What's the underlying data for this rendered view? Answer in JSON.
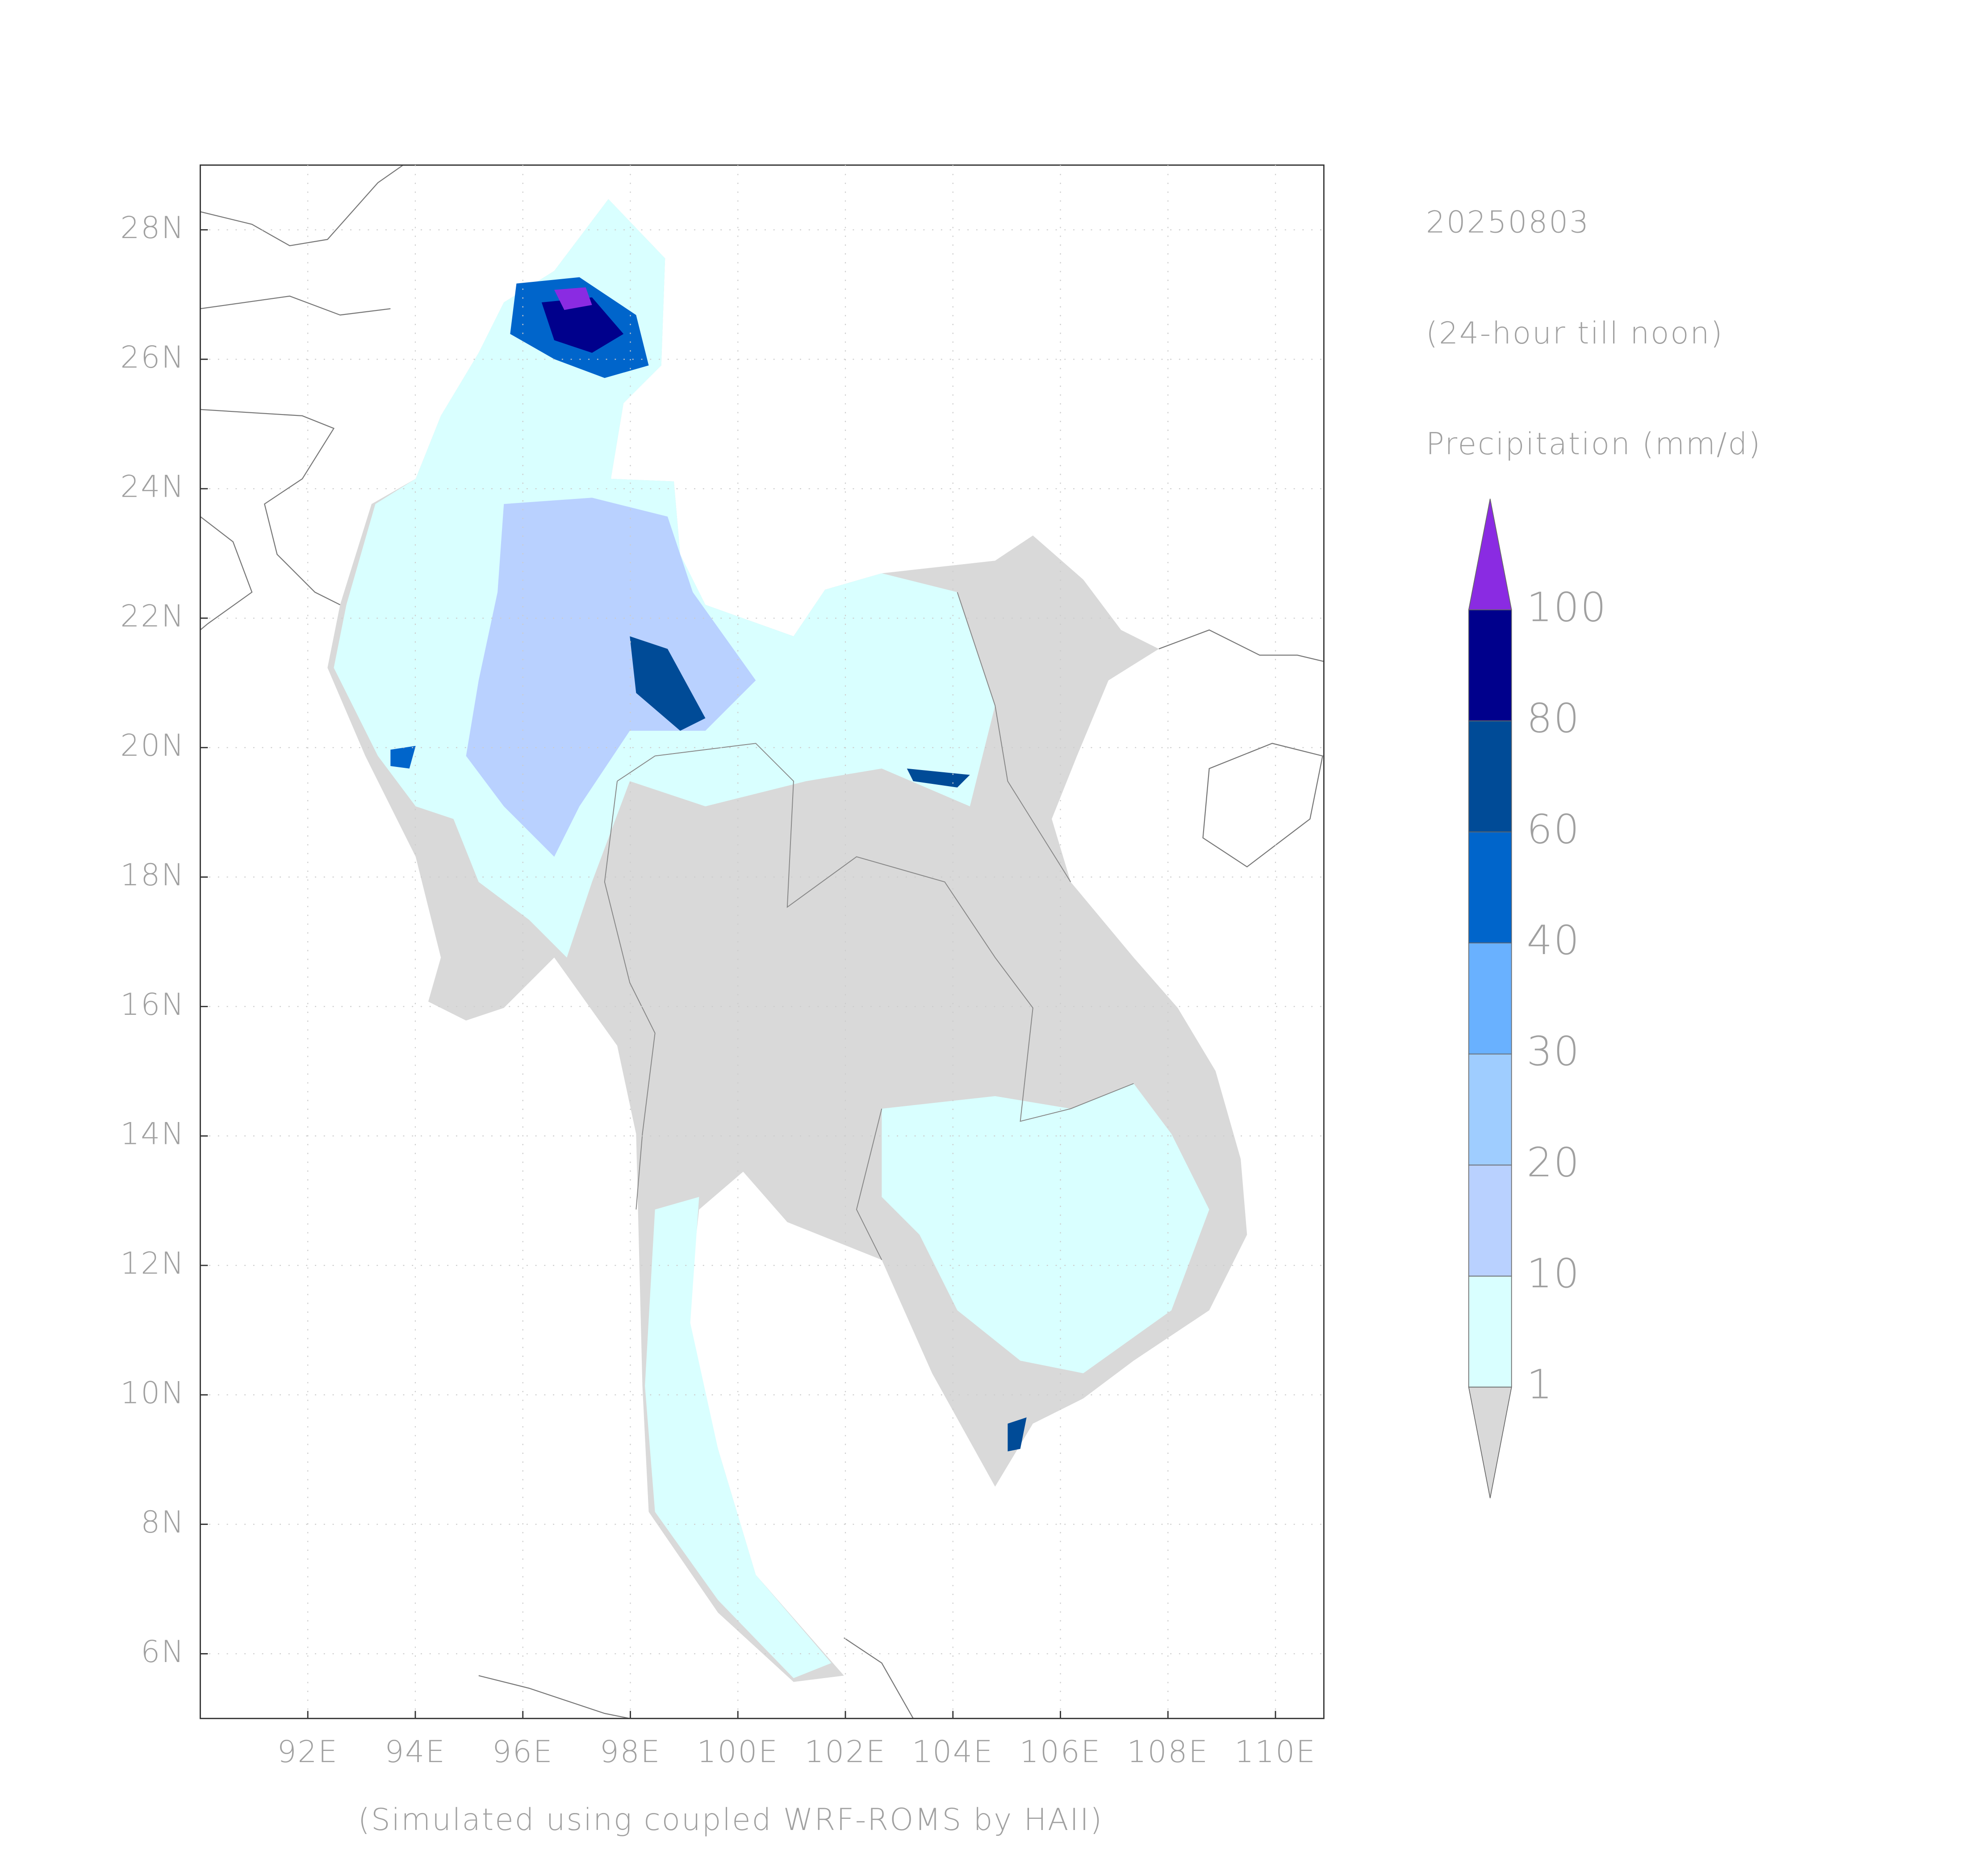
{
  "map": {
    "title_date": "20250803",
    "title_period": "(24-hour till noon)",
    "title_variable": "Precipitation (mm/d)",
    "credit": "(Simulated using coupled WRF-ROMS by HAII)",
    "xlim": [
      90,
      110.9
    ],
    "ylim": [
      5,
      29
    ],
    "xticks": [
      {
        "value": 92,
        "label": "92E"
      },
      {
        "value": 94,
        "label": "94E"
      },
      {
        "value": 96,
        "label": "96E"
      },
      {
        "value": 98,
        "label": "98E"
      },
      {
        "value": 100,
        "label": "100E"
      },
      {
        "value": 102,
        "label": "102E"
      },
      {
        "value": 104,
        "label": "104E"
      },
      {
        "value": 106,
        "label": "106E"
      },
      {
        "value": 108,
        "label": "108E"
      },
      {
        "value": 110,
        "label": "110E"
      }
    ],
    "yticks": [
      {
        "value": 6,
        "label": "6N"
      },
      {
        "value": 8,
        "label": "8N"
      },
      {
        "value": 10,
        "label": "10N"
      },
      {
        "value": 12,
        "label": "12N"
      },
      {
        "value": 14,
        "label": "14N"
      },
      {
        "value": 16,
        "label": "16N"
      },
      {
        "value": 18,
        "label": "18N"
      },
      {
        "value": 20,
        "label": "20N"
      },
      {
        "value": 22,
        "label": "22N"
      },
      {
        "value": 24,
        "label": "24N"
      },
      {
        "value": 26,
        "label": "26N"
      },
      {
        "value": 28,
        "label": "28N"
      }
    ],
    "grid": true,
    "colorbar": {
      "levels": [
        1,
        10,
        20,
        30,
        40,
        60,
        80,
        100
      ],
      "colors": [
        "#d9ffff",
        "#b9d1ff",
        "#9fcdff",
        "#69b1ff",
        "#0065cb",
        "#004b97",
        "#00008c"
      ],
      "under_color": "#d9d9d9",
      "over_color": "#8a2be2"
    }
  }
}
